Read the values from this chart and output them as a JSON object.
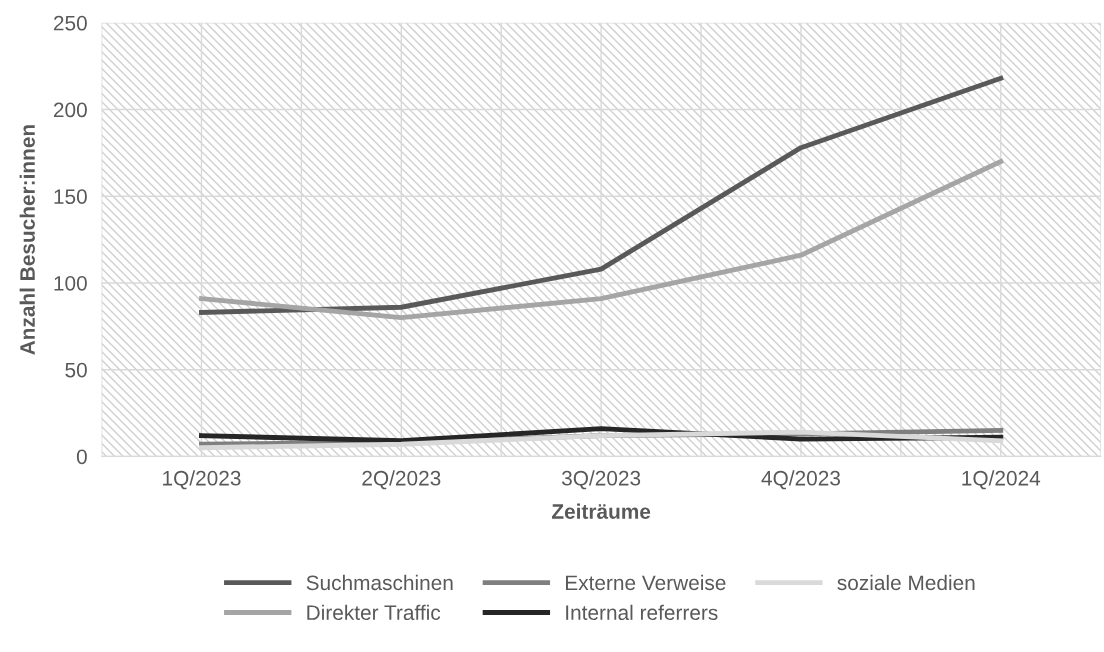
{
  "chart_data": {
    "type": "line",
    "xlabel": "Zeiträume",
    "ylabel": "Anzahl Besucher:innen",
    "categories": [
      "1Q/2023",
      "2Q/2023",
      "3Q/2023",
      "4Q/2023",
      "1Q/2024"
    ],
    "series": [
      {
        "name": "Suchmaschinen",
        "color": "#595959",
        "values": [
          83,
          86,
          108,
          178,
          218
        ]
      },
      {
        "name": "Direkter Traffic",
        "color": "#a5a5a5",
        "values": [
          91,
          80,
          91,
          116,
          170
        ]
      },
      {
        "name": "Externe Verweise",
        "color": "#7f7f7f",
        "values": [
          7,
          8,
          12,
          13,
          15
        ]
      },
      {
        "name": "Internal referrers",
        "color": "#262626",
        "values": [
          12,
          9,
          16,
          10,
          11
        ]
      },
      {
        "name": "soziale Medien",
        "color": "#d9d9d9",
        "values": [
          5,
          7,
          12,
          14,
          9
        ]
      }
    ],
    "ylim": [
      0,
      250
    ],
    "yticks": [
      0,
      50,
      100,
      150,
      200,
      250
    ],
    "grid": true,
    "legend": "bottom",
    "marker": "none",
    "line_style": "solid"
  }
}
